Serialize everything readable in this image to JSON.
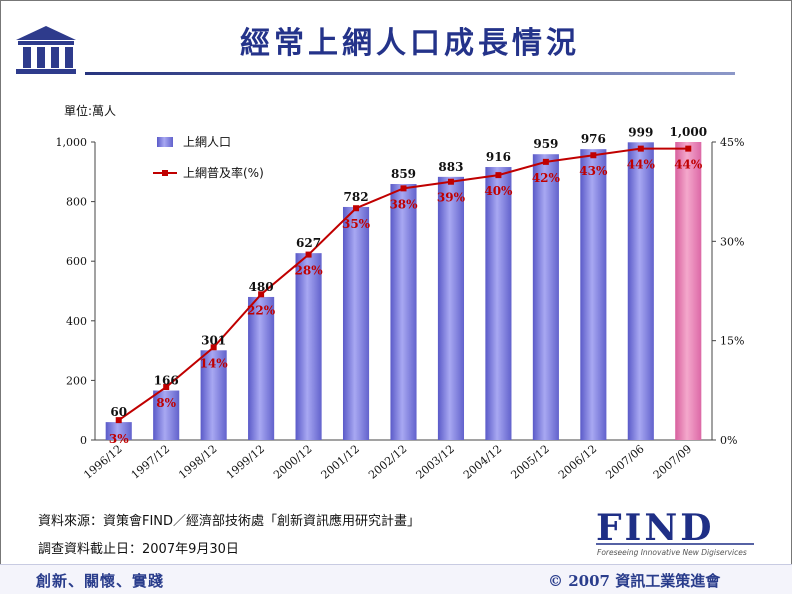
{
  "slide": {
    "title": "經常上網人口成長情況",
    "unit": "單位:萬人",
    "source": "資料來源：資策會FIND／經濟部技術處「創新資訊應用研究計畫」",
    "deadline": "調查資料截止日：2007年9月30日",
    "motto": "創新、關懷、實踐",
    "copyright": "© 2007 資訊工業策進會",
    "find_logo_text": "FIND",
    "find_tagline": "Foreseeing Innovative New Digiservices"
  },
  "colors": {
    "bar": "#8080e0",
    "bar_highlight": "#e080b0",
    "line": "#c00000",
    "title": "#24338a"
  },
  "chart_data": {
    "type": "bar+line",
    "categories": [
      "1996/12",
      "1997/12",
      "1998/12",
      "1999/12",
      "2000/12",
      "2001/12",
      "2002/12",
      "2003/12",
      "2004/12",
      "2005/12",
      "2006/12",
      "2007/06",
      "2007/09"
    ],
    "series": [
      {
        "name": "上網人口",
        "type": "bar",
        "axis": "left",
        "values": [
          60,
          166,
          301,
          480,
          627,
          782,
          859,
          883,
          916,
          959,
          976,
          999,
          1000
        ],
        "labels": [
          "60",
          "166",
          "301",
          "480",
          "627",
          "782",
          "859",
          "883",
          "916",
          "959",
          "976",
          "999",
          "1,000"
        ]
      },
      {
        "name": "上網普及率(%)",
        "type": "line",
        "axis": "right",
        "values": [
          3,
          8,
          14,
          22,
          28,
          35,
          38,
          39,
          40,
          42,
          43,
          44,
          44
        ],
        "labels": [
          "3%",
          "8%",
          "14%",
          "22%",
          "28%",
          "35%",
          "38%",
          "39%",
          "40%",
          "42%",
          "43%",
          "44%",
          "44%"
        ]
      }
    ],
    "left_axis": {
      "ylim": [
        0,
        1000
      ],
      "ticks": [
        "0",
        "200",
        "400",
        "600",
        "800",
        "1,000"
      ],
      "tick_values": [
        0,
        200,
        400,
        600,
        800,
        1000
      ]
    },
    "right_axis": {
      "ylim": [
        0,
        45
      ],
      "ticks": [
        "0%",
        "15%",
        "30%",
        "45%"
      ],
      "tick_values": [
        0,
        15,
        30,
        45
      ]
    },
    "legend": [
      "上網人口",
      "上網普及率(%)"
    ],
    "legend_position": "top-left"
  }
}
